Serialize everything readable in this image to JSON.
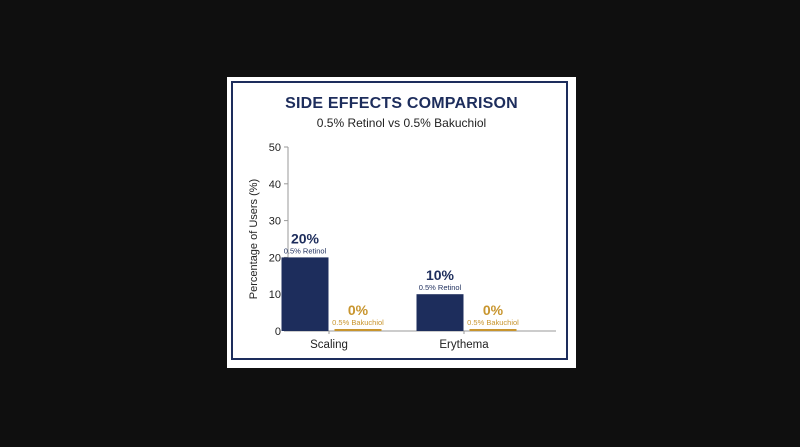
{
  "chart_data": {
    "type": "bar",
    "title": "SIDE EFFECTS COMPARISON",
    "subtitle": "0.5% Retinol vs 0.5% Bakuchiol",
    "ylabel": "Percentage of Users (%)",
    "xlabel": "",
    "ylim": [
      0,
      50
    ],
    "yticks": [
      0,
      10,
      20,
      30,
      40,
      50
    ],
    "categories": [
      "Scaling",
      "Erythema"
    ],
    "series": [
      {
        "name": "0.5% Retinol",
        "color": "#1d2d5c",
        "values": [
          20,
          10
        ],
        "labels": [
          "20%",
          "10%"
        ]
      },
      {
        "name": "0.5% Bakuchiol",
        "color": "#c8952e",
        "values": [
          0,
          0
        ],
        "labels": [
          "0%",
          "0%"
        ]
      }
    ],
    "grid": false,
    "legend": "none"
  }
}
